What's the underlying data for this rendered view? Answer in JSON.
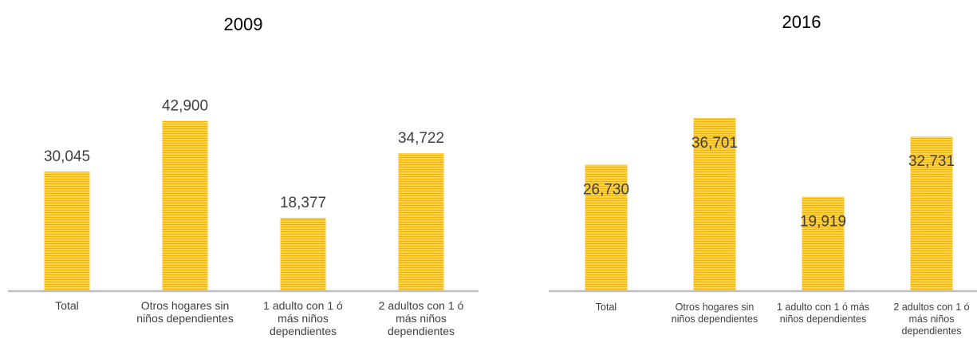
{
  "chart_data": [
    {
      "type": "bar",
      "title": "2009",
      "categories": [
        "Total",
        "Otros hogares sin niños dependientes",
        "1 adulto con 1 ó más niños dependientes",
        "2 adultos con 1 ó más niños dependientes"
      ],
      "category_label_lines": [
        [
          "Total"
        ],
        [
          "Otros hogares sin",
          "niños dependientes"
        ],
        [
          "1 adulto con 1 ó",
          "más niños",
          "dependientes"
        ],
        [
          "2 adultos con 1 ó",
          "más niños",
          "dependientes"
        ]
      ],
      "values": [
        30045,
        42900,
        18377,
        34722
      ],
      "value_labels": [
        "30,045",
        "42,900",
        "18,377",
        "34,722"
      ],
      "ylim": [
        0,
        50000
      ],
      "grid": false,
      "legend": "none",
      "bar_color": "#FFC000"
    },
    {
      "type": "bar",
      "title": "2016",
      "categories": [
        "Total",
        "Otros hogares sin niños dependientes",
        "1 adulto con 1 ó más niños dependientes",
        "2 adultos con 1 ó más niños dependientes"
      ],
      "category_label_lines": [
        [
          "Total"
        ],
        [
          "Otros hogares sin",
          "niños dependientes"
        ],
        [
          "1 adulto con 1 ó más",
          "niños dependientes"
        ],
        [
          "2 adultos con 1 ó",
          "más niños",
          "dependientes"
        ]
      ],
      "values": [
        26730,
        36701,
        19919,
        32731
      ],
      "value_labels": [
        "26,730",
        "36,701",
        "19,919",
        "32,731"
      ],
      "ylim": [
        0,
        40000
      ],
      "grid": false,
      "legend": "none",
      "bar_color": "#FFC000"
    }
  ]
}
